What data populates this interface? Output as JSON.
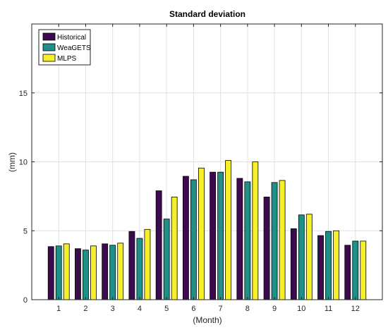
{
  "chart_data": {
    "type": "bar",
    "title": "Standard deviation",
    "xlabel": "(Month)",
    "ylabel": "(mm)",
    "categories": [
      "1",
      "2",
      "3",
      "4",
      "5",
      "6",
      "7",
      "8",
      "9",
      "10",
      "11",
      "12"
    ],
    "ylim": [
      0,
      20
    ],
    "yticks": [
      "0",
      "5",
      "10",
      "15"
    ],
    "grid": true,
    "legend_position": "top-left",
    "series": [
      {
        "name": "Historical",
        "color": "#3b0a4f",
        "values": [
          3.85,
          3.7,
          4.05,
          4.95,
          7.9,
          8.95,
          9.25,
          8.8,
          7.45,
          5.15,
          4.65,
          3.95
        ]
      },
      {
        "name": "WeaGETS",
        "color": "#1e9087",
        "values": [
          3.9,
          3.6,
          3.95,
          4.45,
          5.85,
          8.7,
          9.25,
          8.55,
          8.5,
          6.15,
          4.95,
          4.25
        ]
      },
      {
        "name": "MLPS",
        "color": "#f5f02a",
        "values": [
          4.05,
          3.9,
          4.1,
          5.1,
          7.45,
          9.55,
          10.1,
          10.0,
          8.65,
          6.2,
          5.0,
          4.25
        ]
      }
    ]
  }
}
